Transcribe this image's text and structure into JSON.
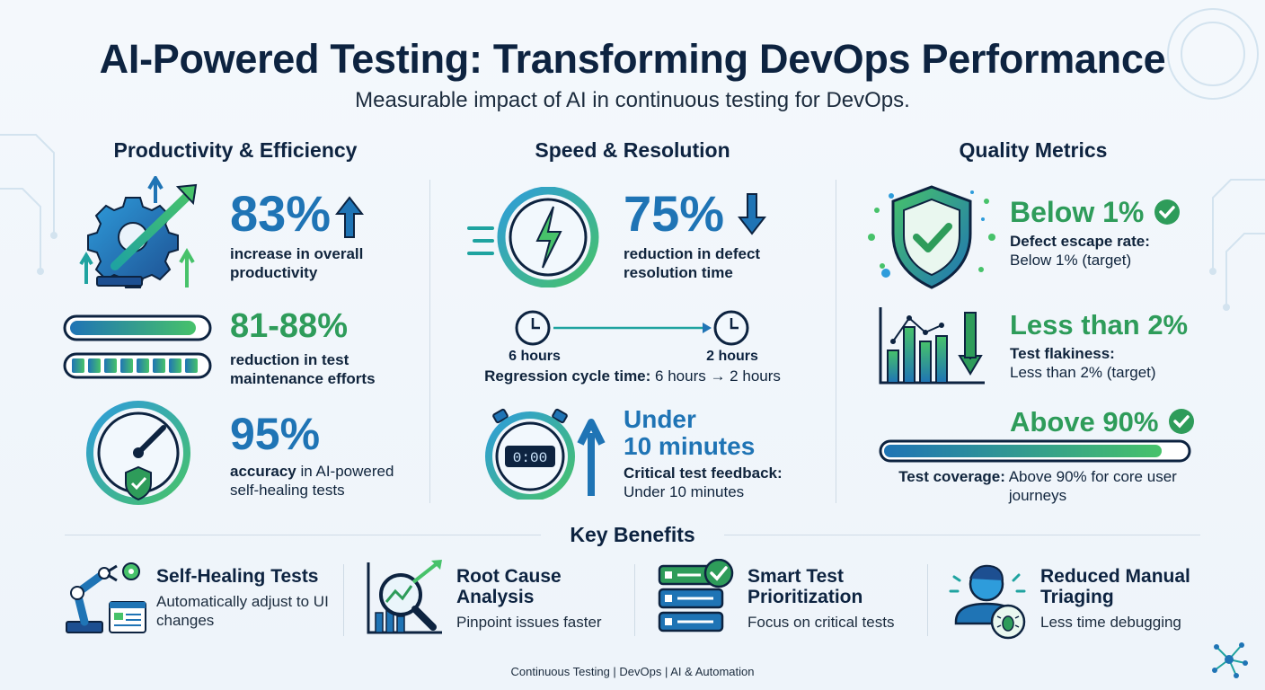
{
  "title": "AI-Powered Testing: Transforming DevOps Performance",
  "subtitle": "Measurable impact of AI in continuous testing for DevOps.",
  "columns": {
    "productivity": {
      "heading": "Productivity & Efficiency",
      "m1": {
        "value": "83%",
        "desc": "increase in overall productivity"
      },
      "m2": {
        "value": "81-88%",
        "desc": "reduction in test maintenance efforts"
      },
      "m3": {
        "value": "95%",
        "desc_bold": "accuracy",
        "desc_rest": " in AI-powered self-healing tests"
      }
    },
    "speed": {
      "heading": "Speed & Resolution",
      "m1": {
        "value": "75%",
        "desc": "reduction in defect resolution time"
      },
      "timeline": {
        "start": "6 hours",
        "end": "2 hours",
        "label_bold": "Regression cycle time:",
        "label_rest": " 6 hours → 2 hours"
      },
      "m3": {
        "value_line1": "Under",
        "value_line2": "10 minutes",
        "desc_bold": "Critical test feedback:",
        "desc_rest": "Under 10 minutes",
        "clock_display": "0:00"
      }
    },
    "quality": {
      "heading": "Quality Metrics",
      "m1": {
        "value": "Below 1%",
        "desc_bold": "Defect escape rate:",
        "desc_rest": "Below 1% (target)"
      },
      "m2": {
        "value": "Less than 2%",
        "desc_bold": "Test flakiness:",
        "desc_rest": "Less than 2% (target)"
      },
      "m3": {
        "value": "Above 90%",
        "desc_bold": "Test coverage:",
        "desc_rest": " Above 90% for core user journeys",
        "coverage_fraction": 0.92
      }
    }
  },
  "key_benefits": {
    "heading": "Key Benefits",
    "items": [
      {
        "title": "Self-Healing Tests",
        "desc": "Automatically adjust to UI changes",
        "icon": "robot-arm-icon"
      },
      {
        "title": "Root Cause Analysis",
        "desc": "Pinpoint issues faster",
        "icon": "magnifier-chart-icon"
      },
      {
        "title": "Smart Test Prioritization",
        "desc": "Focus on critical tests",
        "icon": "prioritized-list-icon"
      },
      {
        "title": "Reduced Manual Triaging",
        "desc": "Less time debugging",
        "icon": "person-bug-icon"
      }
    ]
  },
  "footer": "Continuous Testing | DevOps | AI & Automation",
  "colors": {
    "navy": "#0d2340",
    "blue": "#1f74b5",
    "green": "#2e9c5a",
    "teal": "#1fa3a0"
  }
}
